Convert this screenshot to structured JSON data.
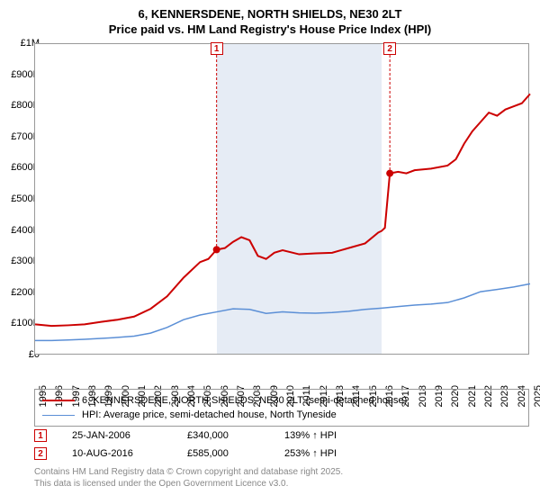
{
  "title": {
    "line1": "6, KENNERSDENE, NORTH SHIELDS, NE30 2LT",
    "line2": "Price paid vs. HM Land Registry's House Price Index (HPI)"
  },
  "chart": {
    "type": "line",
    "background_color": "#ffffff",
    "shaded_region_color": "#e6ecf5",
    "border_color": "#999999",
    "x_axis": {
      "min": 1995,
      "max": 2025,
      "ticks": [
        1995,
        1996,
        1997,
        1998,
        1999,
        2000,
        2001,
        2002,
        2003,
        2004,
        2005,
        2006,
        2007,
        2008,
        2009,
        2010,
        2011,
        2012,
        2013,
        2014,
        2015,
        2016,
        2017,
        2018,
        2019,
        2020,
        2021,
        2022,
        2023,
        2024,
        2025
      ],
      "tick_fontsize": 11,
      "tick_rotation": -90
    },
    "y_axis": {
      "min": 0,
      "max": 1000000,
      "ticks": [
        0,
        100000,
        200000,
        300000,
        400000,
        500000,
        600000,
        700000,
        800000,
        900000,
        1000000
      ],
      "tick_labels": [
        "£0",
        "£100K",
        "£200K",
        "£300K",
        "£400K",
        "£500K",
        "£600K",
        "£700K",
        "£800K",
        "£900K",
        "£1M"
      ],
      "tick_fontsize": 11
    },
    "shaded_region": {
      "x_start": 2006,
      "x_end": 2016
    },
    "series": [
      {
        "name": "price_paid",
        "label": "6, KENNERSDENE, NORTH SHIELDS, NE30 2LT (semi-detached house)",
        "color": "#cc0000",
        "line_width": 2,
        "data": [
          [
            1995,
            100000
          ],
          [
            1996,
            95000
          ],
          [
            1997,
            97000
          ],
          [
            1998,
            100000
          ],
          [
            1999,
            108000
          ],
          [
            2000,
            115000
          ],
          [
            2001,
            125000
          ],
          [
            2002,
            150000
          ],
          [
            2003,
            190000
          ],
          [
            2004,
            250000
          ],
          [
            2005,
            300000
          ],
          [
            2005.5,
            310000
          ],
          [
            2006,
            340000
          ],
          [
            2006.5,
            345000
          ],
          [
            2007,
            365000
          ],
          [
            2007.5,
            380000
          ],
          [
            2008,
            370000
          ],
          [
            2008.5,
            320000
          ],
          [
            2009,
            310000
          ],
          [
            2009.5,
            330000
          ],
          [
            2010,
            338000
          ],
          [
            2011,
            325000
          ],
          [
            2012,
            328000
          ],
          [
            2013,
            330000
          ],
          [
            2014,
            345000
          ],
          [
            2015,
            360000
          ],
          [
            2015.8,
            395000
          ],
          [
            2016,
            400000
          ],
          [
            2016.2,
            410000
          ],
          [
            2016.5,
            585000
          ],
          [
            2017,
            590000
          ],
          [
            2017.5,
            585000
          ],
          [
            2018,
            595000
          ],
          [
            2019,
            600000
          ],
          [
            2020,
            610000
          ],
          [
            2020.5,
            630000
          ],
          [
            2021,
            680000
          ],
          [
            2021.5,
            720000
          ],
          [
            2022,
            750000
          ],
          [
            2022.5,
            780000
          ],
          [
            2023,
            770000
          ],
          [
            2023.5,
            790000
          ],
          [
            2024,
            800000
          ],
          [
            2024.5,
            810000
          ],
          [
            2025,
            840000
          ]
        ]
      },
      {
        "name": "hpi",
        "label": "HPI: Average price, semi-detached house, North Tyneside",
        "color": "#5b8fd6",
        "line_width": 1.5,
        "data": [
          [
            1995,
            48000
          ],
          [
            1996,
            48000
          ],
          [
            1997,
            50000
          ],
          [
            1998,
            52000
          ],
          [
            1999,
            55000
          ],
          [
            2000,
            58000
          ],
          [
            2001,
            62000
          ],
          [
            2002,
            72000
          ],
          [
            2003,
            90000
          ],
          [
            2004,
            115000
          ],
          [
            2005,
            130000
          ],
          [
            2006,
            140000
          ],
          [
            2007,
            150000
          ],
          [
            2008,
            148000
          ],
          [
            2009,
            135000
          ],
          [
            2010,
            140000
          ],
          [
            2011,
            137000
          ],
          [
            2012,
            136000
          ],
          [
            2013,
            138000
          ],
          [
            2014,
            142000
          ],
          [
            2015,
            148000
          ],
          [
            2016,
            152000
          ],
          [
            2017,
            157000
          ],
          [
            2018,
            162000
          ],
          [
            2019,
            165000
          ],
          [
            2020,
            170000
          ],
          [
            2021,
            185000
          ],
          [
            2022,
            205000
          ],
          [
            2023,
            212000
          ],
          [
            2024,
            220000
          ],
          [
            2025,
            230000
          ]
        ]
      }
    ],
    "markers": [
      {
        "id": "1",
        "x": 2006,
        "point_y": 340000
      },
      {
        "id": "2",
        "x": 2016.5,
        "point_y": 585000
      }
    ]
  },
  "legend": {
    "border_color": "#999999",
    "fontsize": 11
  },
  "footer_rows": [
    {
      "marker": "1",
      "date": "25-JAN-2006",
      "price": "£340,000",
      "hpi": "139% ↑ HPI"
    },
    {
      "marker": "2",
      "date": "10-AUG-2016",
      "price": "£585,000",
      "hpi": "253% ↑ HPI"
    }
  ],
  "attribution": {
    "line1": "Contains HM Land Registry data © Crown copyright and database right 2025.",
    "line2": "This data is licensed under the Open Government Licence v3.0."
  }
}
